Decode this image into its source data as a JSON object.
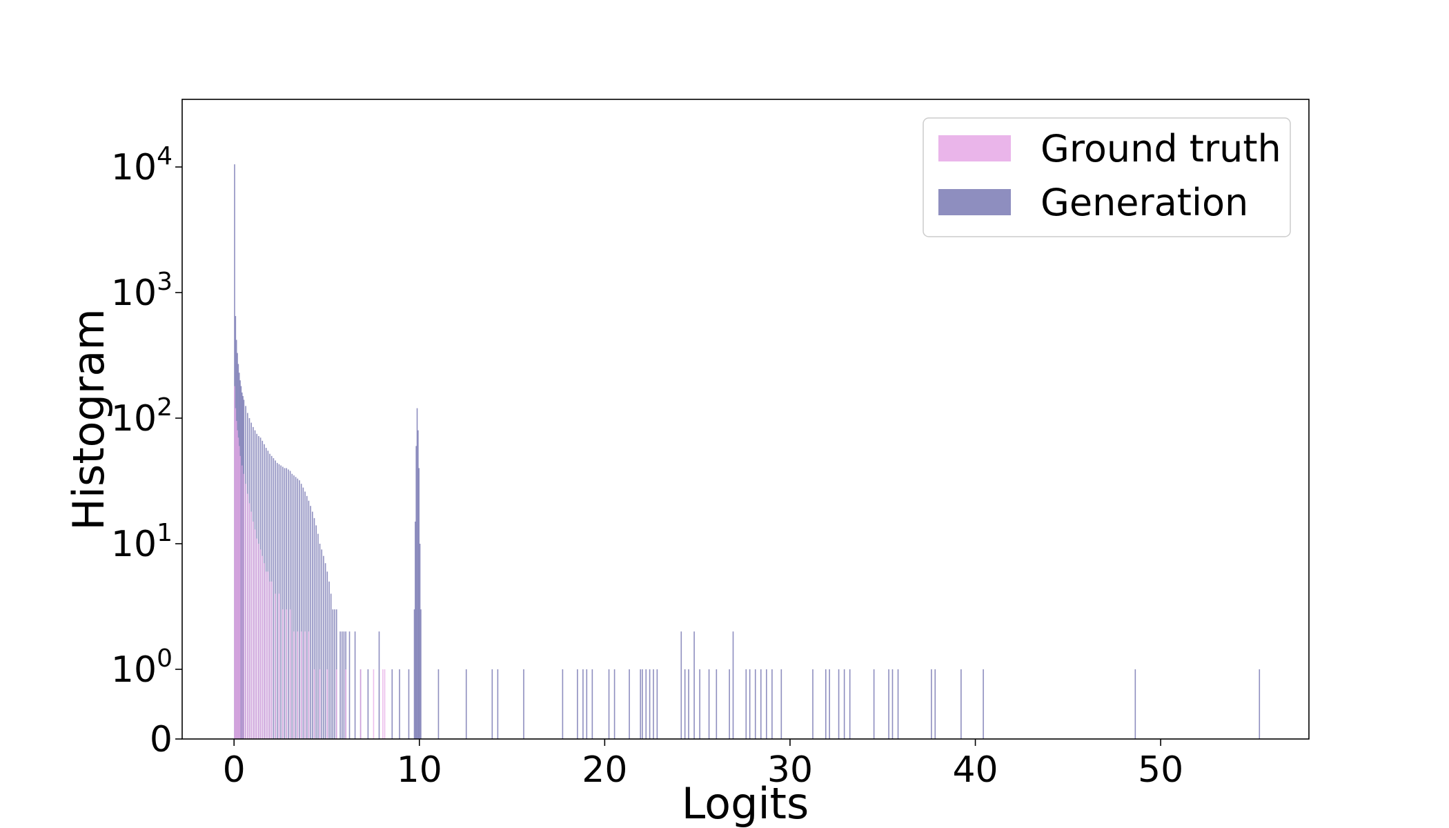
{
  "chart_data": {
    "type": "bar",
    "subtype": "histogram",
    "xlabel": "Logits",
    "ylabel": "Histogram",
    "xlim": [
      -2.8,
      58
    ],
    "yscale": "symlog",
    "yticks": [
      {
        "value": 0,
        "base": "0",
        "exp": ""
      },
      {
        "value": 1,
        "base": "10",
        "exp": "0"
      },
      {
        "value": 10,
        "base": "10",
        "exp": "1"
      },
      {
        "value": 100,
        "base": "10",
        "exp": "2"
      },
      {
        "value": 1000,
        "base": "10",
        "exp": "3"
      },
      {
        "value": 10000,
        "base": "10",
        "exp": "4"
      }
    ],
    "xticks": [
      0,
      10,
      20,
      30,
      40,
      50
    ],
    "ytick_labels": {
      "0": "0"
    },
    "xtick_labels": [
      "0",
      "10",
      "20",
      "30",
      "40",
      "50"
    ],
    "grid": false,
    "legend_position": "top-right",
    "series": [
      {
        "name": "Ground truth",
        "color": "#e6a8e6",
        "bins": [
          [
            0.0,
            180
          ],
          [
            0.05,
            120
          ],
          [
            0.1,
            95
          ],
          [
            0.15,
            80
          ],
          [
            0.2,
            70
          ],
          [
            0.25,
            60
          ],
          [
            0.3,
            50
          ],
          [
            0.4,
            42
          ],
          [
            0.5,
            36
          ],
          [
            0.6,
            30
          ],
          [
            0.7,
            25
          ],
          [
            0.8,
            21
          ],
          [
            0.9,
            18
          ],
          [
            1.0,
            15
          ],
          [
            1.1,
            13
          ],
          [
            1.2,
            11
          ],
          [
            1.3,
            10
          ],
          [
            1.4,
            9
          ],
          [
            1.5,
            8
          ],
          [
            1.6,
            7
          ],
          [
            1.7,
            6
          ],
          [
            1.8,
            6
          ],
          [
            1.9,
            5
          ],
          [
            2.0,
            5
          ],
          [
            2.2,
            4
          ],
          [
            2.4,
            4
          ],
          [
            2.6,
            3
          ],
          [
            2.8,
            3
          ],
          [
            3.0,
            3
          ],
          [
            3.2,
            2
          ],
          [
            3.4,
            2
          ],
          [
            3.6,
            2
          ],
          [
            3.8,
            2
          ],
          [
            4.0,
            2
          ],
          [
            4.3,
            1
          ],
          [
            4.6,
            1
          ],
          [
            5.0,
            1
          ],
          [
            5.5,
            1
          ],
          [
            6.0,
            1
          ],
          [
            6.8,
            1
          ],
          [
            7.5,
            1
          ],
          [
            8.0,
            1
          ],
          [
            8.1,
            1
          ]
        ]
      },
      {
        "name": "Generation",
        "color": "#7a7ab4",
        "bins": [
          [
            0.0,
            10500
          ],
          [
            0.05,
            650
          ],
          [
            0.1,
            420
          ],
          [
            0.15,
            330
          ],
          [
            0.2,
            270
          ],
          [
            0.25,
            230
          ],
          [
            0.3,
            200
          ],
          [
            0.35,
            180
          ],
          [
            0.4,
            160
          ],
          [
            0.45,
            150
          ],
          [
            0.5,
            140
          ],
          [
            0.6,
            125
          ],
          [
            0.7,
            110
          ],
          [
            0.8,
            100
          ],
          [
            0.9,
            92
          ],
          [
            1.0,
            85
          ],
          [
            1.1,
            80
          ],
          [
            1.2,
            75
          ],
          [
            1.3,
            72
          ],
          [
            1.4,
            70
          ],
          [
            1.5,
            66
          ],
          [
            1.6,
            62
          ],
          [
            1.7,
            58
          ],
          [
            1.8,
            55
          ],
          [
            1.9,
            52
          ],
          [
            2.0,
            50
          ],
          [
            2.1,
            48
          ],
          [
            2.2,
            46
          ],
          [
            2.3,
            44
          ],
          [
            2.4,
            43
          ],
          [
            2.5,
            42
          ],
          [
            2.6,
            41
          ],
          [
            2.7,
            40
          ],
          [
            2.8,
            40
          ],
          [
            2.9,
            39
          ],
          [
            3.0,
            38
          ],
          [
            3.1,
            36
          ],
          [
            3.2,
            35
          ],
          [
            3.3,
            34
          ],
          [
            3.4,
            33
          ],
          [
            3.5,
            32
          ],
          [
            3.6,
            30
          ],
          [
            3.7,
            28
          ],
          [
            3.8,
            26
          ],
          [
            3.9,
            24
          ],
          [
            4.0,
            22
          ],
          [
            4.1,
            20
          ],
          [
            4.2,
            18
          ],
          [
            4.3,
            16
          ],
          [
            4.4,
            14
          ],
          [
            4.5,
            12
          ],
          [
            4.6,
            10
          ],
          [
            4.7,
            9
          ],
          [
            4.8,
            8
          ],
          [
            4.9,
            7
          ],
          [
            5.0,
            6
          ],
          [
            5.1,
            5
          ],
          [
            5.2,
            4
          ],
          [
            5.3,
            3
          ],
          [
            5.4,
            3
          ],
          [
            5.5,
            3
          ],
          [
            5.7,
            2
          ],
          [
            5.8,
            2
          ],
          [
            5.9,
            2
          ],
          [
            6.0,
            2
          ],
          [
            6.2,
            2
          ],
          [
            6.5,
            2
          ],
          [
            6.8,
            1
          ],
          [
            7.2,
            1
          ],
          [
            7.8,
            2
          ],
          [
            8.5,
            1
          ],
          [
            8.9,
            1
          ],
          [
            9.4,
            1
          ],
          [
            9.7,
            3
          ],
          [
            9.75,
            15
          ],
          [
            9.8,
            60
          ],
          [
            9.85,
            120
          ],
          [
            9.9,
            80
          ],
          [
            9.95,
            40
          ],
          [
            10.0,
            10
          ],
          [
            10.05,
            3
          ],
          [
            11.0,
            1
          ],
          [
            12.5,
            1
          ],
          [
            13.9,
            1
          ],
          [
            14.2,
            1
          ],
          [
            15.6,
            1
          ],
          [
            17.7,
            1
          ],
          [
            18.5,
            1
          ],
          [
            18.8,
            1
          ],
          [
            19.0,
            1
          ],
          [
            19.3,
            1
          ],
          [
            20.2,
            1
          ],
          [
            20.5,
            1
          ],
          [
            21.3,
            1
          ],
          [
            21.9,
            1
          ],
          [
            22.0,
            1
          ],
          [
            22.2,
            1
          ],
          [
            22.4,
            1
          ],
          [
            22.6,
            1
          ],
          [
            22.8,
            1
          ],
          [
            24.1,
            2
          ],
          [
            24.3,
            1
          ],
          [
            24.5,
            1
          ],
          [
            24.8,
            2
          ],
          [
            25.1,
            1
          ],
          [
            25.6,
            1
          ],
          [
            26.0,
            1
          ],
          [
            26.7,
            1
          ],
          [
            26.9,
            2
          ],
          [
            27.6,
            1
          ],
          [
            27.8,
            1
          ],
          [
            28.1,
            1
          ],
          [
            28.4,
            1
          ],
          [
            28.7,
            1
          ],
          [
            29.0,
            1
          ],
          [
            29.5,
            1
          ],
          [
            31.2,
            1
          ],
          [
            31.9,
            1
          ],
          [
            32.1,
            1
          ],
          [
            32.6,
            1
          ],
          [
            32.9,
            1
          ],
          [
            33.2,
            1
          ],
          [
            34.5,
            1
          ],
          [
            35.3,
            1
          ],
          [
            35.5,
            1
          ],
          [
            35.8,
            1
          ],
          [
            37.6,
            1
          ],
          [
            37.8,
            1
          ],
          [
            39.2,
            1
          ],
          [
            40.4,
            1
          ],
          [
            48.6,
            1
          ],
          [
            55.3,
            1
          ]
        ]
      }
    ]
  }
}
